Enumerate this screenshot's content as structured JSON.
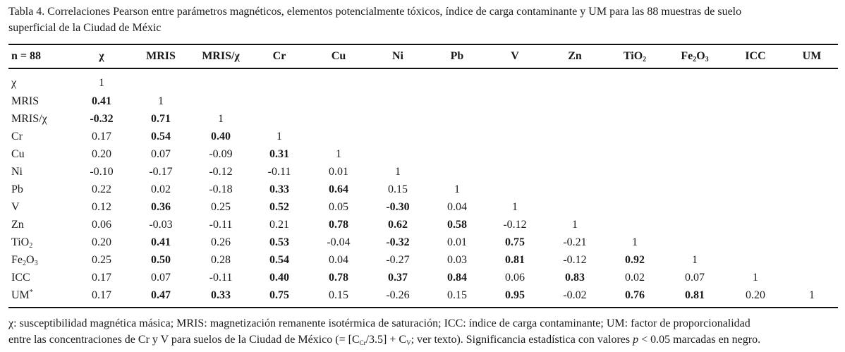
{
  "caption": {
    "line1": "Tabla 4.  Correlaciones Pearson entre parámetros magnéticos, elementos potencialmente tóxicos, índice de carga contaminante y UM para las 88 muestras de suelo",
    "line2": "superficial de la Ciudad de Méxic"
  },
  "table": {
    "columns": [
      {
        "text": "n = 88"
      },
      {
        "text": "χ"
      },
      {
        "text": "MRIS"
      },
      {
        "text": "MRIS/χ"
      },
      {
        "text": "Cr"
      },
      {
        "text": "Cu"
      },
      {
        "text": "Ni"
      },
      {
        "text": "Pb"
      },
      {
        "text": "V"
      },
      {
        "text": "Zn"
      },
      {
        "text": "TiO",
        "sub": "2"
      },
      {
        "text": "Fe",
        "sub": "2",
        "text2": "O",
        "sub2": "3"
      },
      {
        "text": "ICC"
      },
      {
        "text": "UM"
      }
    ],
    "rows": [
      {
        "label": {
          "text": "χ"
        },
        "cells": [
          {
            "v": "1",
            "b": false
          }
        ]
      },
      {
        "label": {
          "text": "MRIS"
        },
        "cells": [
          {
            "v": "0.41",
            "b": true
          },
          {
            "v": "1",
            "b": false
          }
        ]
      },
      {
        "label": {
          "text": "MRIS/χ"
        },
        "cells": [
          {
            "v": "-0.32",
            "b": true
          },
          {
            "v": "0.71",
            "b": true
          },
          {
            "v": "1",
            "b": false
          }
        ]
      },
      {
        "label": {
          "text": "Cr"
        },
        "cells": [
          {
            "v": "0.17",
            "b": false
          },
          {
            "v": "0.54",
            "b": true
          },
          {
            "v": "0.40",
            "b": true
          },
          {
            "v": "1",
            "b": false
          }
        ]
      },
      {
        "label": {
          "text": "Cu"
        },
        "cells": [
          {
            "v": "0.20",
            "b": false
          },
          {
            "v": "0.07",
            "b": false
          },
          {
            "v": "-0.09",
            "b": false
          },
          {
            "v": "0.31",
            "b": true
          },
          {
            "v": "1",
            "b": false
          }
        ]
      },
      {
        "label": {
          "text": "Ni"
        },
        "cells": [
          {
            "v": "-0.10",
            "b": false
          },
          {
            "v": "-0.17",
            "b": false
          },
          {
            "v": "-0.12",
            "b": false
          },
          {
            "v": "-0.11",
            "b": false
          },
          {
            "v": "0.01",
            "b": false
          },
          {
            "v": "1",
            "b": false
          }
        ]
      },
      {
        "label": {
          "text": "Pb"
        },
        "cells": [
          {
            "v": "0.22",
            "b": false
          },
          {
            "v": "0.02",
            "b": false
          },
          {
            "v": "-0.18",
            "b": false
          },
          {
            "v": "0.33",
            "b": true
          },
          {
            "v": "0.64",
            "b": true
          },
          {
            "v": "0.15",
            "b": false
          },
          {
            "v": "1",
            "b": false
          }
        ]
      },
      {
        "label": {
          "text": "V"
        },
        "cells": [
          {
            "v": "0.12",
            "b": false
          },
          {
            "v": "0.36",
            "b": true
          },
          {
            "v": "0.25",
            "b": false
          },
          {
            "v": "0.52",
            "b": true
          },
          {
            "v": "0.05",
            "b": false
          },
          {
            "v": "-0.30",
            "b": true
          },
          {
            "v": "0.04",
            "b": false
          },
          {
            "v": "1",
            "b": false
          }
        ]
      },
      {
        "label": {
          "text": "Zn"
        },
        "cells": [
          {
            "v": "0.06",
            "b": false
          },
          {
            "v": "-0.03",
            "b": false
          },
          {
            "v": "-0.11",
            "b": false
          },
          {
            "v": "0.21",
            "b": false
          },
          {
            "v": "0.78",
            "b": true
          },
          {
            "v": "0.62",
            "b": true
          },
          {
            "v": "0.58",
            "b": true
          },
          {
            "v": "-0.12",
            "b": false
          },
          {
            "v": "1",
            "b": false
          }
        ]
      },
      {
        "label": {
          "text": "TiO",
          "sub": "2"
        },
        "cells": [
          {
            "v": "0.20",
            "b": false
          },
          {
            "v": "0.41",
            "b": true
          },
          {
            "v": "0.26",
            "b": false
          },
          {
            "v": "0.53",
            "b": true
          },
          {
            "v": "-0.04",
            "b": false
          },
          {
            "v": "-0.32",
            "b": true
          },
          {
            "v": "0.01",
            "b": false
          },
          {
            "v": "0.75",
            "b": true
          },
          {
            "v": "-0.21",
            "b": false
          },
          {
            "v": "1",
            "b": false
          }
        ]
      },
      {
        "label": {
          "text": "Fe",
          "sub": "2",
          "text2": "O",
          "sub2": "3"
        },
        "cells": [
          {
            "v": "0.25",
            "b": false
          },
          {
            "v": "0.50",
            "b": true
          },
          {
            "v": "0.28",
            "b": false
          },
          {
            "v": "0.54",
            "b": true
          },
          {
            "v": "0.04",
            "b": false
          },
          {
            "v": "-0.27",
            "b": false
          },
          {
            "v": "0.03",
            "b": false
          },
          {
            "v": "0.81",
            "b": true
          },
          {
            "v": "-0.12",
            "b": false
          },
          {
            "v": "0.92",
            "b": true
          },
          {
            "v": "1",
            "b": false
          }
        ]
      },
      {
        "label": {
          "text": "ICC"
        },
        "cells": [
          {
            "v": "0.17",
            "b": false
          },
          {
            "v": "0.07",
            "b": false
          },
          {
            "v": "-0.11",
            "b": false
          },
          {
            "v": "0.40",
            "b": true
          },
          {
            "v": "0.78",
            "b": true
          },
          {
            "v": "0.37",
            "b": true
          },
          {
            "v": "0.84",
            "b": true
          },
          {
            "v": "0.06",
            "b": false
          },
          {
            "v": "0.83",
            "b": true
          },
          {
            "v": "0.02",
            "b": false
          },
          {
            "v": "0.07",
            "b": false
          },
          {
            "v": "1",
            "b": false
          }
        ]
      },
      {
        "label": {
          "text": "UM",
          "sup": "*"
        },
        "cells": [
          {
            "v": "0.17",
            "b": false
          },
          {
            "v": "0.47",
            "b": true
          },
          {
            "v": "0.33",
            "b": true
          },
          {
            "v": "0.75",
            "b": true
          },
          {
            "v": "0.15",
            "b": false
          },
          {
            "v": "-0.26",
            "b": false
          },
          {
            "v": "0.15",
            "b": false
          },
          {
            "v": "0.95",
            "b": true
          },
          {
            "v": "-0.02",
            "b": false
          },
          {
            "v": "0.76",
            "b": true
          },
          {
            "v": "0.81",
            "b": true
          },
          {
            "v": "0.20",
            "b": false
          },
          {
            "v": "1",
            "b": false
          }
        ]
      }
    ]
  },
  "notes": {
    "line1": "χ: susceptibilidad magnética másica; MRIS: magnetización remanente isotérmica de saturación; ICC: índice de carga contaminante; UM: factor de proporcionalidad",
    "line2_a": "entre las concentraciones de Cr y V para suelos de la Ciudad de México (= [C",
    "line2_sub1": "Cr",
    "line2_b": "/3.5] + C",
    "line2_sub2": "V",
    "line2_c": "; ver texto). Significancia estadística con valores ",
    "line2_p": "p",
    "line2_d": " < 0.05 marcadas en negro."
  }
}
